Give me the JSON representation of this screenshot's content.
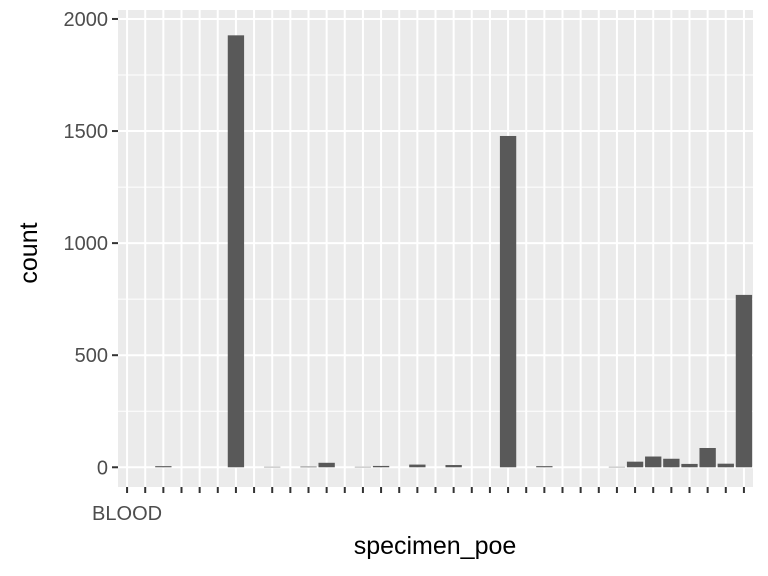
{
  "chart_data": {
    "type": "bar",
    "title": "",
    "xlabel": "specimen_poe",
    "ylabel": "count",
    "ylim": [
      -88,
      2040
    ],
    "y_ticks": [
      0,
      500,
      1000,
      1500,
      2000
    ],
    "y_tick_labels": [
      "0",
      "500",
      "1000",
      "1500",
      "2000"
    ],
    "grid": true,
    "legend": "none",
    "bar_color": "#595959",
    "panel_color": "#ebebeb",
    "categories": [
      "BLOOD",
      "",
      "",
      "",
      "",
      "",
      "",
      "",
      "",
      "",
      "",
      "",
      "",
      "",
      "",
      "",
      "",
      "",
      "",
      "",
      "",
      "",
      "",
      "",
      "",
      "",
      "",
      "",
      "",
      "",
      "",
      "",
      "",
      "",
      ""
    ],
    "values": [
      0,
      0,
      5,
      0,
      0,
      0,
      1927,
      0,
      2,
      0,
      3,
      20,
      0,
      2,
      6,
      0,
      12,
      0,
      10,
      0,
      0,
      1478,
      0,
      5,
      0,
      0,
      0,
      2,
      25,
      48,
      38,
      15,
      86,
      16,
      769
    ]
  }
}
